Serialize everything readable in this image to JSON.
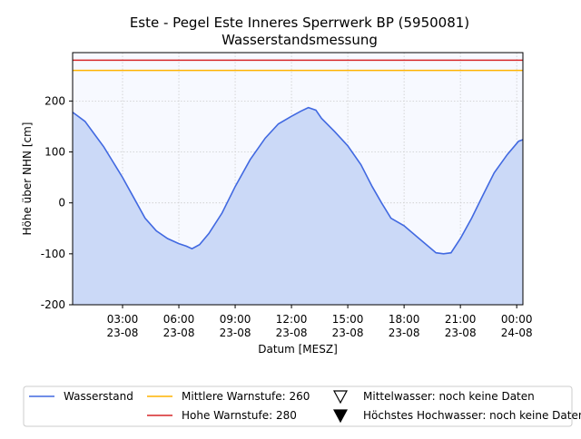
{
  "chart_data": {
    "type": "line",
    "title": "Este - Pegel Este Inneres Sperrwerk BP (5950081)",
    "subtitle": "Wasserstandsmessung",
    "x_label": "Datum [MESZ]",
    "y_label": "Höhe über NHN [cm]",
    "x": [
      0.34,
      1.0,
      1.5,
      2.0,
      2.5,
      3.0,
      3.6,
      4.2,
      4.8,
      5.4,
      6.0,
      6.4,
      6.7,
      7.1,
      7.6,
      8.3,
      9.0,
      9.8,
      10.6,
      11.3,
      12.0,
      12.5,
      12.9,
      13.3,
      13.6,
      14.3,
      15.0,
      15.7,
      16.3,
      16.8,
      17.3,
      18.0,
      18.8,
      19.7,
      20.1,
      20.5,
      21.0,
      21.6,
      22.2,
      22.8,
      23.5,
      24.1,
      24.33
    ],
    "series": [
      {
        "name": "Wasserstand",
        "color": "#4169e1",
        "fill": "#cbd9f7",
        "values": [
          178,
          160,
          135,
          110,
          80,
          50,
          10,
          -30,
          -55,
          -70,
          -80,
          -85,
          -90,
          -82,
          -60,
          -20,
          32,
          85,
          127,
          155,
          170,
          180,
          187,
          182,
          166,
          140,
          112,
          75,
          32,
          0,
          -30,
          -45,
          -70,
          -98,
          -100,
          -98,
          -70,
          -30,
          15,
          59,
          95,
          121,
          124
        ]
      }
    ],
    "hlines": [
      {
        "name": "Mittlere Warnstufe: 260",
        "color": "#ffb300",
        "value": 260
      },
      {
        "name": "Hohe Warnstufe: 280",
        "color": "#d62728",
        "value": 280
      }
    ],
    "markers": [
      {
        "name": "Mittelwasser: noch keine Daten",
        "symbol": "open-triangle-down"
      },
      {
        "name": "Höchstes Hochwasser: noch keine Daten",
        "symbol": "filled-triangle-down"
      }
    ],
    "xlim": [
      0.34,
      24.33
    ],
    "ylim": [
      -200,
      295
    ],
    "xticks": [
      {
        "value": 3,
        "label": "03:00 23-08"
      },
      {
        "value": 6,
        "label": "06:00 23-08"
      },
      {
        "value": 9,
        "label": "09:00 23-08"
      },
      {
        "value": 12,
        "label": "12:00 23-08"
      },
      {
        "value": 15,
        "label": "15:00 23-08"
      },
      {
        "value": 18,
        "label": "18:00 23-08"
      },
      {
        "value": 21,
        "label": "21:00 23-08"
      },
      {
        "value": 24,
        "label": "00:00 24-08"
      }
    ],
    "yticks": [
      -200,
      -100,
      0,
      100,
      200
    ],
    "grid": true
  }
}
